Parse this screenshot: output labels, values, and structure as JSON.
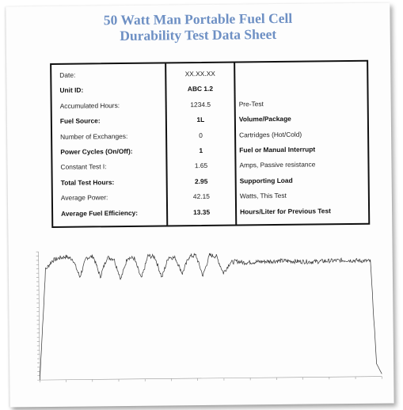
{
  "title": {
    "line1": "50 Watt Man Portable Fuel Cell",
    "line2": "Durability Test Data Sheet"
  },
  "table": {
    "rows": [
      {
        "label": "Date:",
        "value": "XX.XX.XX",
        "note": "",
        "bold": false
      },
      {
        "label": "Unit ID:",
        "value": "ABC 1.2",
        "note": "",
        "bold": true
      },
      {
        "label": "Accumulated Hours:",
        "value": "1234.5",
        "note": "Pre-Test",
        "bold": false
      },
      {
        "label": "Fuel Source:",
        "value": "1L",
        "note": "Volume/Package",
        "bold": true
      },
      {
        "label": "Number of Exchanges:",
        "value": "0",
        "note": "Cartridges (Hot/Cold)",
        "bold": false
      },
      {
        "label": "Power Cycles (On/Off):",
        "value": "1",
        "note": "Fuel or Manual Interrupt",
        "bold": true
      },
      {
        "label": "Constant Test I:",
        "value": "1.65",
        "note": "Amps, Passive resistance",
        "bold": false
      },
      {
        "label": "Total Test Hours:",
        "value": "2.95",
        "note": "Supporting Load",
        "bold": true
      },
      {
        "label": "Average Power:",
        "value": "42.15",
        "note": "Watts, This Test",
        "bold": false
      },
      {
        "label": "Average Fuel Efficiency:",
        "value": "13.35",
        "note": "Hours/Liter for Previous Test",
        "bold": true
      }
    ]
  },
  "chart_data": {
    "type": "line",
    "title": "",
    "xlabel": "",
    "ylabel": "",
    "grid": false,
    "description_points": {
      "x": [
        0,
        0.02,
        0.04,
        0.06,
        0.08,
        0.1,
        0.12,
        0.14,
        0.16,
        0.18,
        0.2,
        0.22,
        0.24,
        0.26,
        0.28,
        0.3,
        0.32,
        0.34,
        0.36,
        0.38,
        0.4,
        0.42,
        0.44,
        0.46,
        0.48,
        0.5,
        0.52,
        0.54,
        0.56,
        0.58,
        0.6,
        0.7,
        0.8,
        0.9,
        0.97,
        0.985,
        1.0
      ],
      "y": [
        0,
        0.86,
        0.93,
        0.95,
        0.96,
        0.94,
        0.8,
        0.95,
        0.96,
        0.8,
        0.95,
        0.94,
        0.78,
        0.95,
        0.94,
        0.78,
        0.96,
        0.95,
        0.79,
        0.95,
        0.94,
        0.82,
        0.95,
        0.96,
        0.8,
        0.96,
        0.95,
        0.82,
        0.9,
        0.91,
        0.9,
        0.91,
        0.9,
        0.91,
        0.9,
        0.1,
        0.02
      ]
    }
  }
}
